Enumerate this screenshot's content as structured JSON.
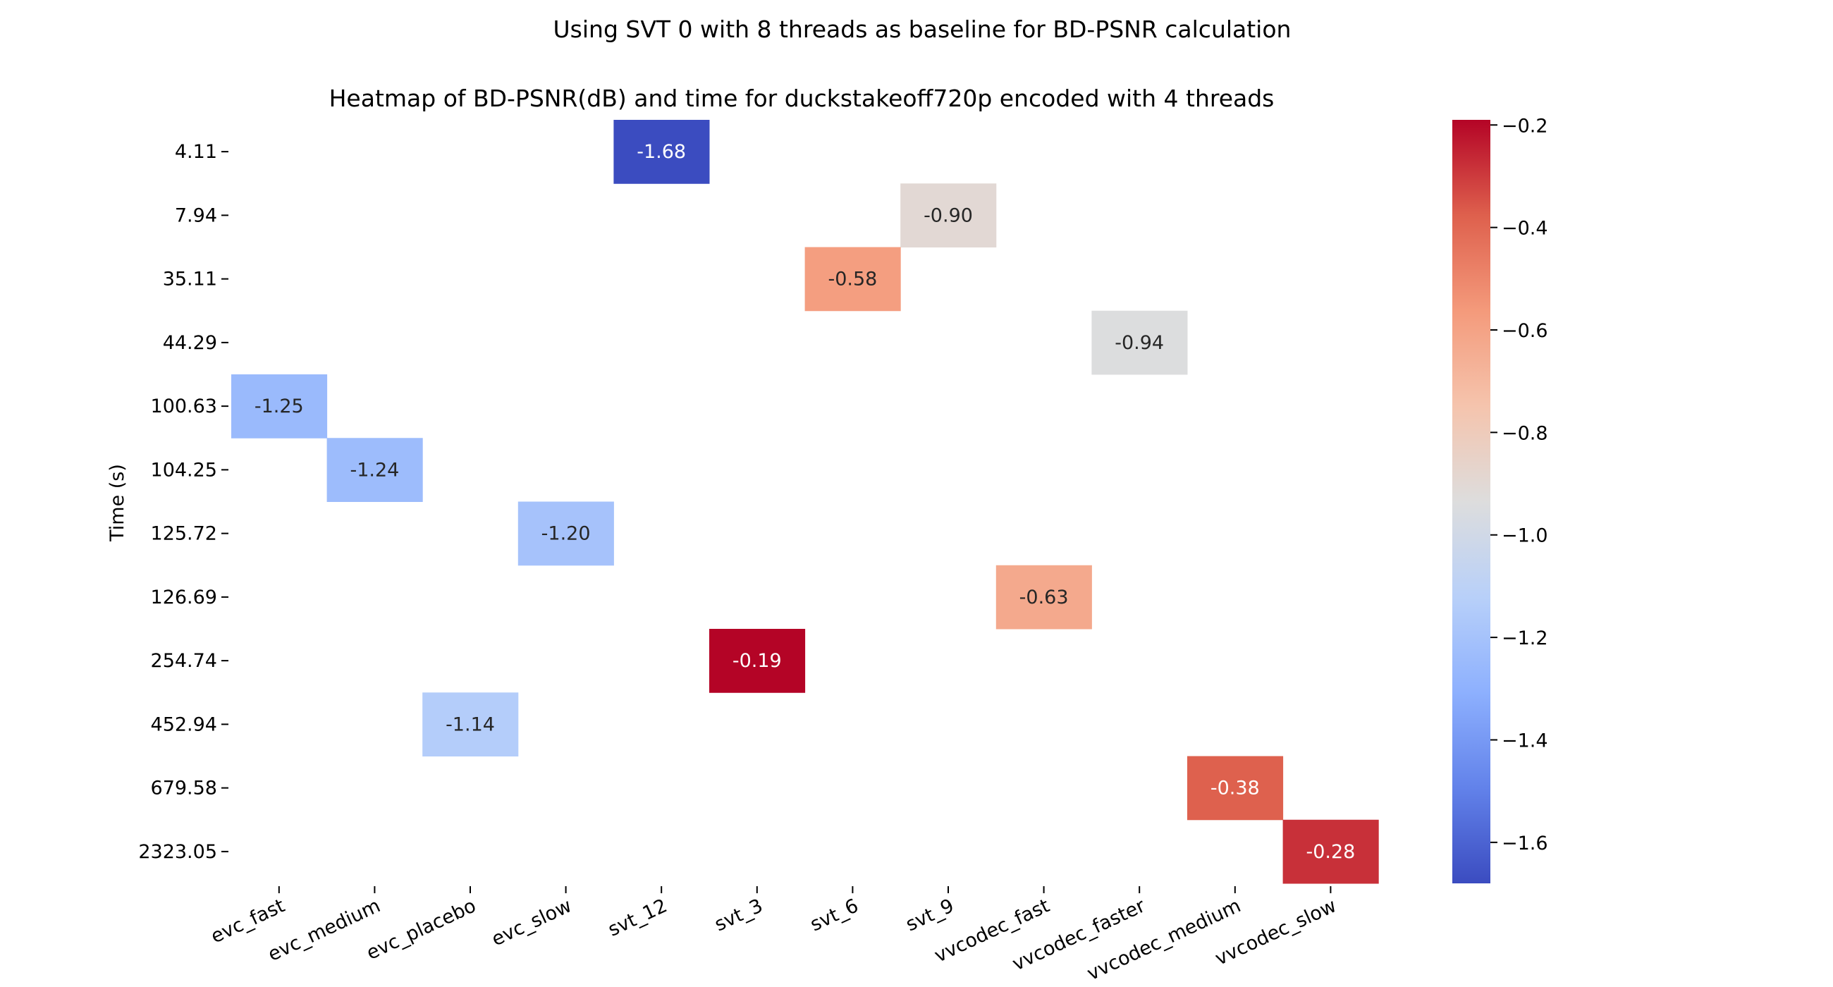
{
  "chart_data": {
    "type": "heatmap",
    "suptitle": "Using SVT 0 with 8 threads as baseline for BD-PSNR calculation",
    "title": "Heatmap of BD-PSNR(dB) and time for duckstakeoff720p encoded with 4 threads",
    "xlabel": "",
    "ylabel": "Time (s)",
    "x_categories": [
      "evc_fast",
      "evc_medium",
      "evc_placebo",
      "evc_slow",
      "svt_12",
      "svt_3",
      "svt_6",
      "svt_9",
      "vvcodec_fast",
      "vvcodec_faster",
      "vvcodec_medium",
      "vvcodec_slow"
    ],
    "y_categories": [
      "4.11",
      "7.94",
      "35.11",
      "44.29",
      "100.63",
      "104.25",
      "125.72",
      "126.69",
      "254.74",
      "452.94",
      "679.58",
      "2323.05"
    ],
    "cells": [
      {
        "x": "svt_12",
        "y": "4.11",
        "value": -1.68,
        "label": "-1.68"
      },
      {
        "x": "svt_9",
        "y": "7.94",
        "value": -0.9,
        "label": "-0.90"
      },
      {
        "x": "svt_6",
        "y": "35.11",
        "value": -0.58,
        "label": "-0.58"
      },
      {
        "x": "vvcodec_faster",
        "y": "44.29",
        "value": -0.94,
        "label": "-0.94"
      },
      {
        "x": "evc_fast",
        "y": "100.63",
        "value": -1.25,
        "label": "-1.25"
      },
      {
        "x": "evc_medium",
        "y": "104.25",
        "value": -1.24,
        "label": "-1.24"
      },
      {
        "x": "evc_slow",
        "y": "125.72",
        "value": -1.2,
        "label": "-1.20"
      },
      {
        "x": "vvcodec_fast",
        "y": "126.69",
        "value": -0.63,
        "label": "-0.63"
      },
      {
        "x": "svt_3",
        "y": "254.74",
        "value": -0.19,
        "label": "-0.19"
      },
      {
        "x": "evc_placebo",
        "y": "452.94",
        "value": -1.14,
        "label": "-1.14"
      },
      {
        "x": "vvcodec_medium",
        "y": "679.58",
        "value": -0.38,
        "label": "-0.38"
      },
      {
        "x": "vvcodec_slow",
        "y": "2323.05",
        "value": -0.28,
        "label": "-0.28"
      }
    ],
    "colorbar": {
      "colormap": "coolwarm",
      "range": [
        -1.68,
        -0.19
      ],
      "ticks": [
        -0.2,
        -0.4,
        -0.6,
        -0.8,
        -1.0,
        -1.2,
        -1.4,
        -1.6
      ],
      "tick_labels": [
        "−0.2",
        "−0.4",
        "−0.6",
        "−0.8",
        "−1.0",
        "−1.2",
        "−1.4",
        "−1.6"
      ]
    },
    "grid": false
  }
}
